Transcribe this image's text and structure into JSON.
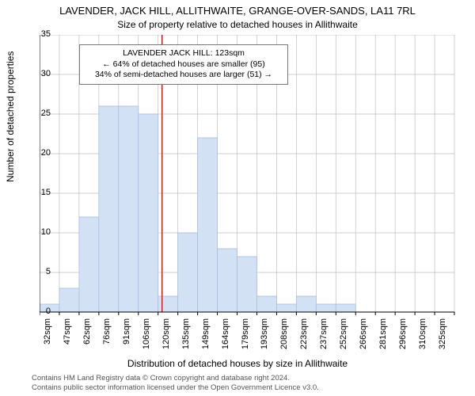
{
  "titles": {
    "line1": "LAVENDER, JACK HILL, ALLITHWAITE, GRANGE-OVER-SANDS, LA11 7RL",
    "line2": "Size of property relative to detached houses in Allithwaite"
  },
  "axes": {
    "ylabel": "Number of detached properties",
    "xlabel": "Distribution of detached houses by size in Allithwaite",
    "ylim": [
      0,
      35
    ],
    "ytick_step": 5,
    "label_fontsize": 12,
    "tick_fontsize": 11
  },
  "callout": {
    "line1": "LAVENDER JACK HILL: 123sqm",
    "line2": "← 64% of detached houses are smaller (95)",
    "line3": "34% of semi-detached houses are larger (51) →"
  },
  "chart": {
    "type": "bar",
    "values": [
      1,
      3,
      12,
      26,
      26,
      25,
      2,
      10,
      22,
      8,
      7,
      2,
      1,
      2,
      1,
      1,
      0,
      0,
      0,
      0,
      0
    ],
    "x_labels": [
      "32sqm",
      "47sqm",
      "62sqm",
      "76sqm",
      "91sqm",
      "106sqm",
      "120sqm",
      "135sqm",
      "149sqm",
      "164sqm",
      "179sqm",
      "193sqm",
      "208sqm",
      "223sqm",
      "237sqm",
      "252sqm",
      "266sqm",
      "281sqm",
      "296sqm",
      "310sqm",
      "325sqm"
    ],
    "bar_fill": "#d3e1f5",
    "bar_stroke": "#a6bfe0",
    "grid_color": "#bfbfbf",
    "axis_color": "#000000",
    "marker_color": "#ff0000",
    "marker_index": 6.2,
    "background_color": "#ffffff",
    "bar_width_ratio": 1.0
  },
  "footer": {
    "line1": "Contains HM Land Registry data © Crown copyright and database right 2024.",
    "line2": "Contains public sector information licensed under the Open Government Licence v3.0."
  }
}
